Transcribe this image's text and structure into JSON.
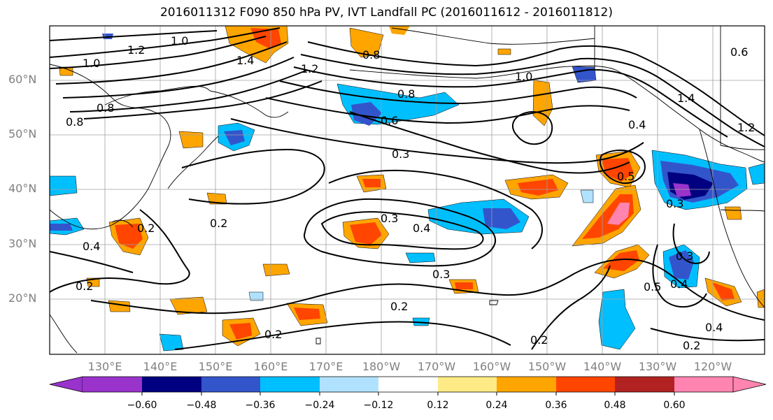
{
  "title": "2016011312 F090 850 hPa PV, IVT Landfall PC (2016011612 - 2016011812)",
  "lat_labels": [
    "60°N",
    "50°N",
    "40°N",
    "30°N",
    "20°N"
  ],
  "lon_labels": [
    "130°E",
    "140°E",
    "150°E",
    "160°E",
    "170°E",
    "180°W",
    "170°W",
    "160°W",
    "150°W",
    "140°W",
    "130°W",
    "120°W"
  ],
  "contour_labels": [
    "1.2",
    "1.0",
    "1.0",
    "1.4",
    "0.8",
    "1.2",
    "0.8",
    "0.8",
    "1.0",
    "0.6",
    "0.6",
    "0.4",
    "1.4",
    "1.2",
    "0.8",
    "0.3",
    "0.5",
    "0.3",
    "0.2",
    "0.2",
    "0.3",
    "0.4",
    "0.4",
    "0.3",
    "0.2",
    "0.2",
    "0.2",
    "0.5",
    "0.3",
    "0.4",
    "0.2",
    "0.2",
    "0.4"
  ],
  "colorbar": {
    "colors": [
      "#9933cc",
      "#000080",
      "#3355cc",
      "#00bfff",
      "#b0e2ff",
      "#ffffff",
      "#ffeb85",
      "#ffa500",
      "#ff4500",
      "#b22222",
      "#ff85b0"
    ],
    "ticks": [
      "−0.60",
      "−0.48",
      "−0.36",
      "−0.24",
      "−0.12",
      "0.12",
      "0.24",
      "0.36",
      "0.48",
      "0.60"
    ]
  }
}
